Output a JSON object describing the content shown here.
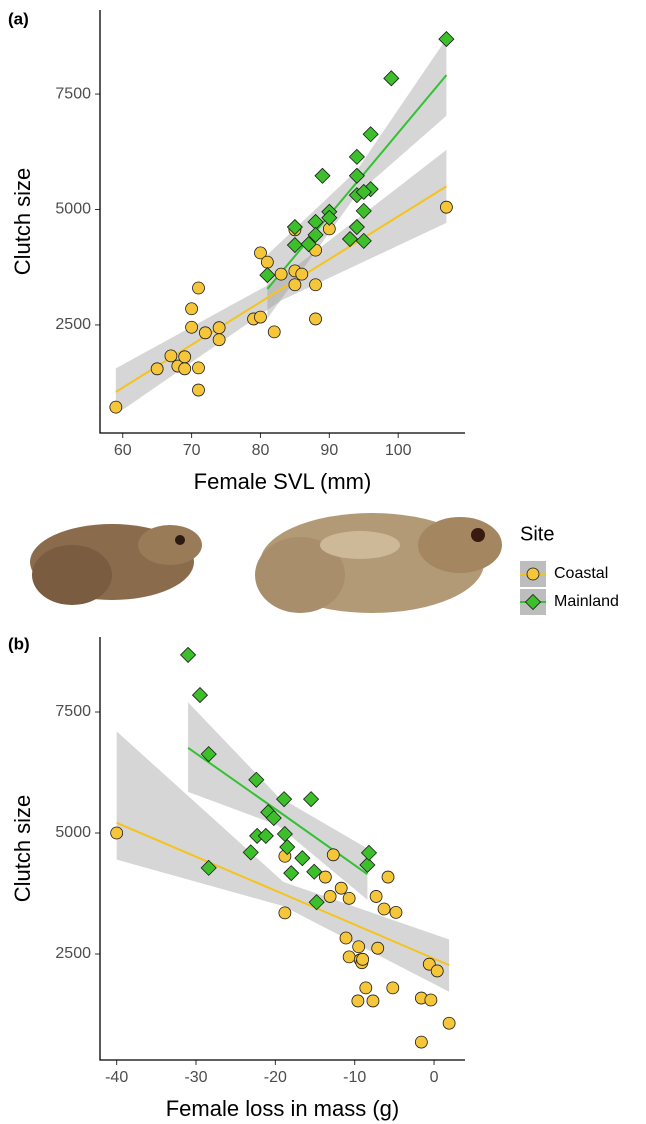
{
  "chart_data": [
    {
      "type": "scatter",
      "title": "(a)",
      "x_label": "Female SVL (mm)",
      "y_label": "Clutch size",
      "xlim": [
        56.7,
        109.7
      ],
      "ylim": [
        160,
        9320
      ],
      "xticks": [
        60,
        70,
        80,
        90,
        100
      ],
      "yticks": [
        2500,
        5000,
        7500
      ],
      "series": [
        {
          "name": "Coastal",
          "color": "#f6c63a",
          "line_color": "#f5c31d",
          "marker": "circle",
          "x": [
            59,
            65,
            67,
            68,
            69,
            69,
            70,
            70,
            71,
            71,
            71,
            72,
            74,
            74,
            79,
            80,
            80,
            81,
            82,
            83,
            85,
            85,
            85,
            86,
            88,
            88,
            88,
            90,
            107
          ],
          "values": [
            720,
            1550,
            1830,
            1610,
            1810,
            1550,
            2450,
            2850,
            3300,
            1570,
            1090,
            2330,
            2440,
            2180,
            2630,
            2670,
            4060,
            3860,
            2350,
            3600,
            4560,
            3670,
            3370,
            3600,
            4120,
            3370,
            2630,
            4580,
            5050
          ],
          "fit": {
            "x": [
              59,
              83,
              107
            ],
            "y": [
              1050,
              3275,
              5500
            ],
            "lower": [
              560,
              3030,
              4710
            ],
            "upper": [
              1560,
              3520,
              6290
            ]
          }
        },
        {
          "name": "Mainland",
          "color": "#3cbf2a",
          "line_color": "#33c133",
          "marker": "diamond",
          "x": [
            107,
            99,
            96,
            94,
            89,
            94,
            94,
            96,
            95,
            95,
            90,
            90,
            88,
            88,
            85,
            85,
            87,
            94,
            93,
            95,
            81
          ],
          "values": [
            8690,
            7840,
            6630,
            6140,
            5730,
            5730,
            5310,
            5440,
            5380,
            4970,
            4950,
            4820,
            4730,
            4450,
            4620,
            4230,
            4250,
            4620,
            4360,
            4320,
            3580
          ],
          "fit": {
            "x": [
              81,
              94,
              107
            ],
            "y": [
              3280,
              5590,
              7910
            ],
            "lower": [
              2640,
              5330,
              7030
            ],
            "upper": [
              4020,
              5850,
              8700
            ]
          }
        }
      ]
    },
    {
      "type": "scatter",
      "title": "(b)",
      "x_label": "Female loss in mass (g)",
      "y_label": "Clutch size",
      "xlim": [
        -42.1,
        3.9
      ],
      "ylim": [
        310,
        9050
      ],
      "xticks": [
        -40,
        -30,
        -20,
        -10,
        0
      ],
      "yticks": [
        2500,
        5000,
        7500
      ],
      "series": [
        {
          "name": "Coastal",
          "color": "#f6c63a",
          "line_color": "#f5c31d",
          "marker": "circle",
          "x": [
            -40,
            -18.8,
            -18.8,
            -12.7,
            -13.7,
            -11.7,
            -13.1,
            -10.7,
            -11.1,
            -10.7,
            -9.5,
            -9.3,
            -9.1,
            -9,
            -7.1,
            -9.6,
            -8.6,
            -7.7,
            -7.3,
            -6.3,
            -5.8,
            -4.8,
            -5.2,
            -1.6,
            -0.4,
            -0.6,
            0.4,
            -1.6,
            1.9
          ],
          "values": [
            5000,
            3350,
            4520,
            4550,
            4090,
            3860,
            3690,
            3650,
            2830,
            2440,
            2650,
            2380,
            2320,
            2390,
            2620,
            1530,
            1800,
            1530,
            3690,
            3430,
            4090,
            3360,
            1800,
            1590,
            1550,
            2290,
            2150,
            680,
            1070
          ],
          "fit": {
            "x": [
              -40,
              -19,
              1.9
            ],
            "y": [
              5210,
              3740,
              2270
            ],
            "lower": [
              4450,
              3490,
              1720
            ],
            "upper": [
              7100,
              3990,
              2800
            ]
          }
        },
        {
          "name": "Mainland",
          "color": "#3cbf2a",
          "line_color": "#33c133",
          "marker": "diamond",
          "x": [
            -31,
            -29.5,
            -28.4,
            -28.4,
            -23.1,
            -22.3,
            -21.2,
            -22.4,
            -20.9,
            -20.2,
            -18.9,
            -18.8,
            -18.5,
            -18,
            -16.6,
            -15.5,
            -15.1,
            -14.8,
            -8.4,
            -8.2
          ],
          "values": [
            8680,
            7850,
            6630,
            4280,
            4600,
            4940,
            4940,
            6100,
            5430,
            5310,
            5700,
            4980,
            4710,
            4170,
            4480,
            5700,
            4200,
            3570,
            4340,
            4590
          ],
          "fit": {
            "x": [
              -31,
              -19.7,
              -8.4
            ],
            "y": [
              6760,
              5460,
              4150
            ],
            "lower": [
              5850,
              5160,
              3620
            ],
            "upper": [
              7700,
              5760,
              4680
            ]
          }
        }
      ]
    }
  ],
  "legend": {
    "title": "Site"
  }
}
